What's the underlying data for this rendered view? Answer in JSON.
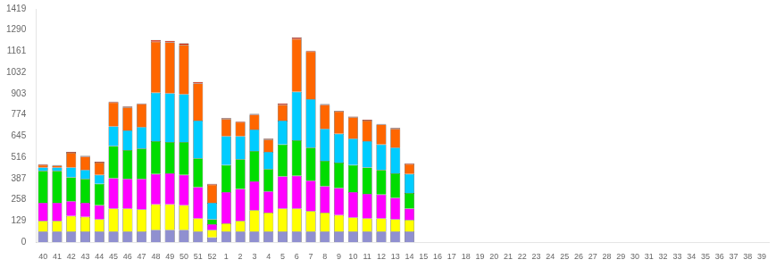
{
  "chart_data": {
    "type": "bar",
    "stacked": true,
    "grid": false,
    "categories": [
      "40",
      "41",
      "42",
      "43",
      "44",
      "45",
      "46",
      "47",
      "48",
      "49",
      "50",
      "51",
      "52",
      "1",
      "2",
      "3",
      "4",
      "5",
      "6",
      "7",
      "8",
      "9",
      "10",
      "11",
      "12",
      "13",
      "14",
      "15",
      "16",
      "17",
      "18",
      "19",
      "20",
      "21",
      "22",
      "23",
      "24",
      "25",
      "26",
      "27",
      "28",
      "29",
      "30",
      "31",
      "32",
      "33",
      "34",
      "35",
      "36",
      "37",
      "38",
      "39"
    ],
    "series": [
      {
        "color": "#9090d0",
        "values": [
          65,
          65,
          65,
          65,
          65,
          65,
          65,
          65,
          75,
          75,
          75,
          65,
          30,
          65,
          65,
          65,
          65,
          65,
          65,
          65,
          65,
          65,
          65,
          65,
          65,
          65,
          65,
          0,
          0,
          0,
          0,
          0,
          0,
          0,
          0,
          0,
          0,
          0,
          0,
          0,
          0,
          0,
          0,
          0,
          0,
          0,
          0,
          0,
          0,
          0,
          0,
          0
        ]
      },
      {
        "color": "#ffff00",
        "values": [
          65,
          65,
          95,
          90,
          75,
          140,
          140,
          135,
          155,
          155,
          150,
          80,
          45,
          50,
          65,
          130,
          115,
          140,
          140,
          125,
          115,
          100,
          85,
          80,
          80,
          75,
          70,
          0,
          0,
          0,
          0,
          0,
          0,
          0,
          0,
          0,
          0,
          0,
          0,
          0,
          0,
          0,
          0,
          0,
          0,
          0,
          0,
          0,
          0,
          0,
          0,
          0
        ]
      },
      {
        "color": "#ff00ff",
        "values": [
          110,
          110,
          90,
          85,
          85,
          185,
          180,
          185,
          185,
          190,
          185,
          190,
          35,
          190,
          195,
          175,
          130,
          195,
          200,
          185,
          160,
          165,
          155,
          150,
          145,
          130,
          70,
          0,
          0,
          0,
          0,
          0,
          0,
          0,
          0,
          0,
          0,
          0,
          0,
          0,
          0,
          0,
          0,
          0,
          0,
          0,
          0,
          0,
          0,
          0,
          0,
          0
        ]
      },
      {
        "color": "#00dd00",
        "values": [
          195,
          195,
          145,
          145,
          130,
          195,
          175,
          185,
          200,
          190,
          200,
          175,
          30,
          165,
          180,
          185,
          135,
          195,
          215,
          200,
          155,
          155,
          165,
          160,
          150,
          150,
          95,
          0,
          0,
          0,
          0,
          0,
          0,
          0,
          0,
          0,
          0,
          0,
          0,
          0,
          0,
          0,
          0,
          0,
          0,
          0,
          0,
          0,
          0,
          0,
          0,
          0
        ]
      },
      {
        "color": "#00ccff",
        "values": [
          20,
          20,
          60,
          55,
          55,
          120,
          120,
          130,
          295,
          295,
          290,
          230,
          100,
          175,
          140,
          130,
          105,
          145,
          295,
          295,
          195,
          175,
          160,
          160,
          155,
          155,
          115,
          0,
          0,
          0,
          0,
          0,
          0,
          0,
          0,
          0,
          0,
          0,
          0,
          0,
          0,
          0,
          0,
          0,
          0,
          0,
          0,
          0,
          0,
          0,
          0,
          0
        ]
      },
      {
        "color": "#ff6600",
        "values": [
          15,
          10,
          90,
          80,
          75,
          145,
          140,
          140,
          310,
          310,
          300,
          225,
          110,
          105,
          85,
          90,
          75,
          95,
          320,
          290,
          145,
          135,
          130,
          125,
          120,
          115,
          60,
          0,
          0,
          0,
          0,
          0,
          0,
          0,
          0,
          0,
          0,
          0,
          0,
          0,
          0,
          0,
          0,
          0,
          0,
          0,
          0,
          0,
          0,
          0,
          0,
          0
        ]
      },
      {
        "color": "#dd2200",
        "values": [
          5,
          5,
          5,
          5,
          5,
          5,
          5,
          5,
          10,
          10,
          10,
          10,
          5,
          5,
          5,
          5,
          5,
          10,
          10,
          5,
          5,
          5,
          5,
          5,
          5,
          5,
          5,
          0,
          0,
          0,
          0,
          0,
          0,
          0,
          0,
          0,
          0,
          0,
          0,
          0,
          0,
          0,
          0,
          0,
          0,
          0,
          0,
          0,
          0,
          0,
          0,
          0
        ]
      }
    ],
    "ylim": [
      0,
      1419
    ],
    "yticks": [
      0,
      129,
      258,
      387,
      516,
      645,
      774,
      903,
      1032,
      1161,
      1290,
      1419
    ]
  }
}
